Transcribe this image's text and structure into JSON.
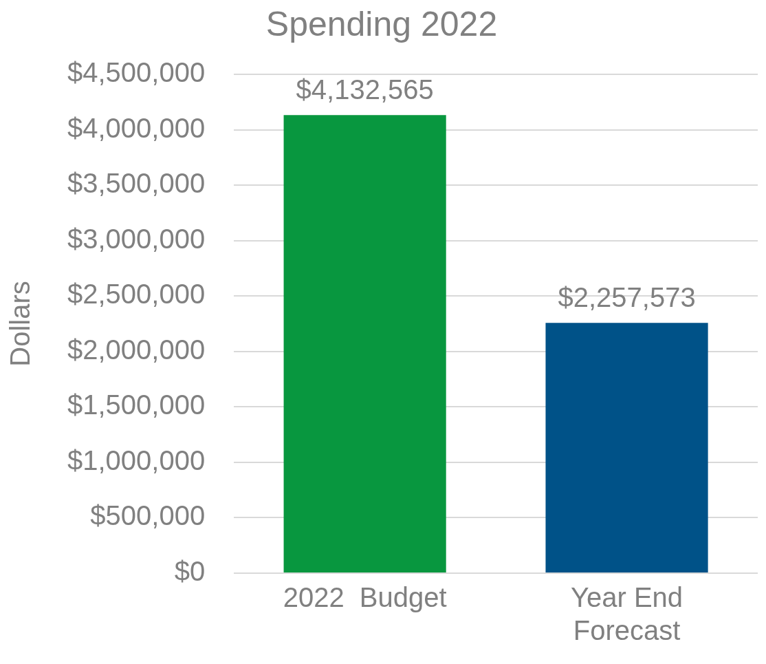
{
  "chart_data": {
    "type": "bar",
    "title": "Spending 2022",
    "ylabel": "Dollars",
    "categories": [
      "2022  Budget",
      "Year End Forecast"
    ],
    "values": [
      4132565,
      2257573
    ],
    "colors": [
      "#08973f",
      "#005288"
    ],
    "value_labels": [
      "$4,132,565",
      "$2,257,573"
    ],
    "ylim": [
      0,
      4500000
    ],
    "yticks": [
      {
        "value": 0,
        "label": "$0"
      },
      {
        "value": 500000,
        "label": "$500,000"
      },
      {
        "value": 1000000,
        "label": "$1,000,000"
      },
      {
        "value": 1500000,
        "label": "$1,500,000"
      },
      {
        "value": 2000000,
        "label": "$2,000,000"
      },
      {
        "value": 2500000,
        "label": "$2,500,000"
      },
      {
        "value": 3000000,
        "label": "$3,000,000"
      },
      {
        "value": 3500000,
        "label": "$3,500,000"
      },
      {
        "value": 4000000,
        "label": "$4,000,000"
      },
      {
        "value": 4500000,
        "label": "$4,500,000"
      }
    ],
    "grid": "y",
    "legend": false
  }
}
